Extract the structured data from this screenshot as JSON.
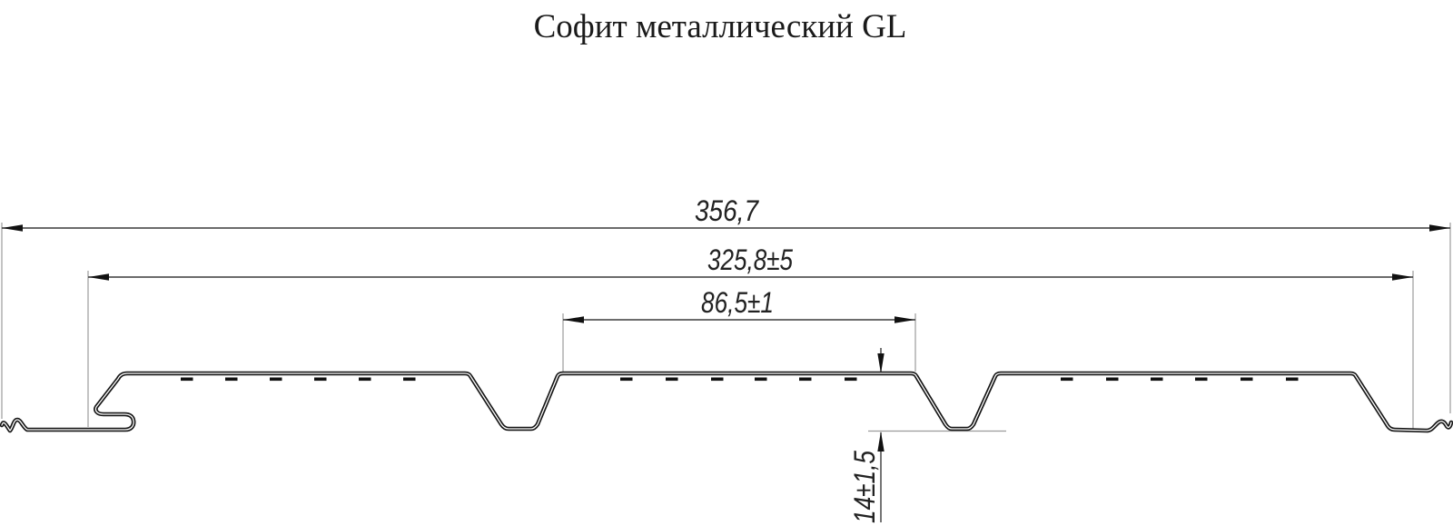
{
  "title": "Софит металлический GL",
  "drawing": {
    "kind": "profile-cross-section",
    "units": "mm"
  },
  "dimensions": {
    "overall_width": "356,7",
    "covering_width": "325,8±5",
    "pan_width": "86,5±1",
    "profile_height": "14±1,5"
  },
  "colors": {
    "profile_line": "#161616",
    "dimension_line": "#3c3c3c",
    "extension_line": "#9b9b9b",
    "text": "#1a1a1a",
    "background": "#ffffff"
  }
}
